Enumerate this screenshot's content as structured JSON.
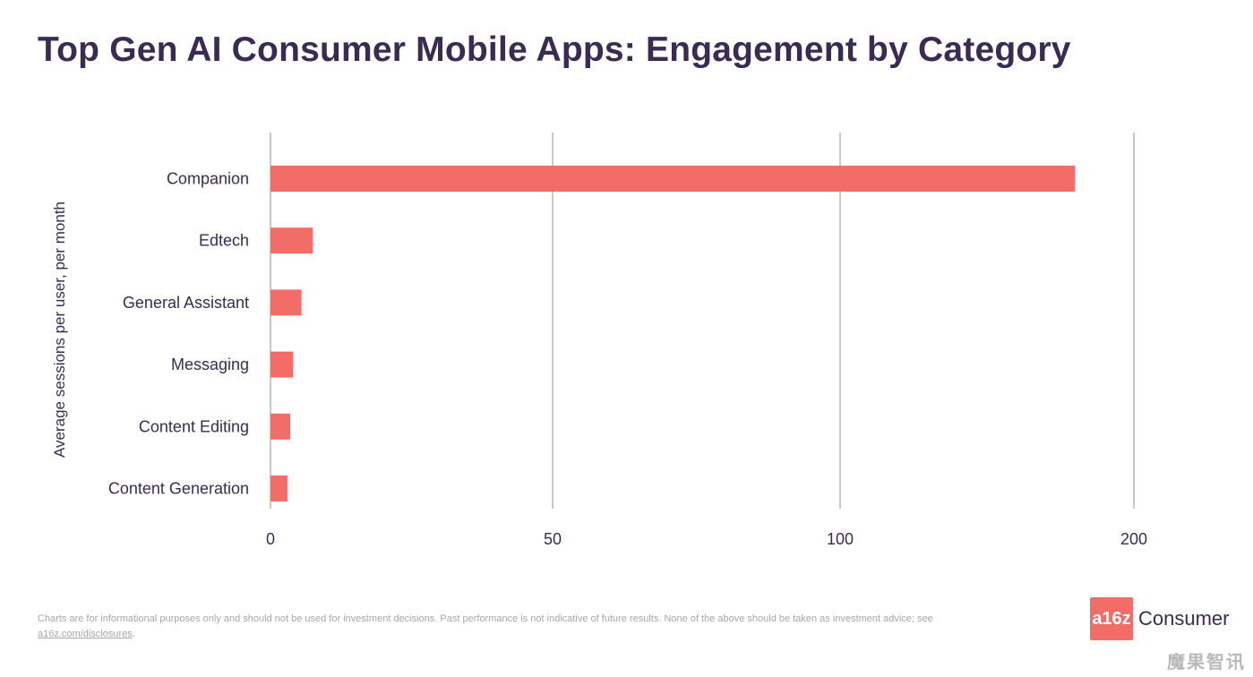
{
  "chart_data": {
    "type": "bar",
    "orientation": "horizontal",
    "title": "Top Gen AI Consumer Mobile Apps: Engagement by Category",
    "xlabel": "",
    "ylabel": "Average sessions per user, per month",
    "categories": [
      "Companion",
      "Edtech",
      "General Assistant",
      "Messaging",
      "Content Editing",
      "Content Generation"
    ],
    "values": [
      180,
      7.5,
      5.5,
      4,
      3.5,
      3
    ],
    "xticks": [
      "0",
      "50",
      "100",
      "200"
    ],
    "xtick_values": [
      0,
      50,
      100,
      200
    ],
    "grid": true,
    "bar_color": "#f26d67"
  },
  "footer": {
    "disclaimer": "Charts are for informational purposes only and should not be used for investment decisions. Past performance is not indicative of future results. None of the above should be taken as investment advice; see",
    "disclaimer_link": "a16z.com/disclosures",
    "disclaimer_end": "."
  },
  "logo": {
    "mark": "a16z",
    "text": "Consumer"
  },
  "watermark": "魔果智讯"
}
